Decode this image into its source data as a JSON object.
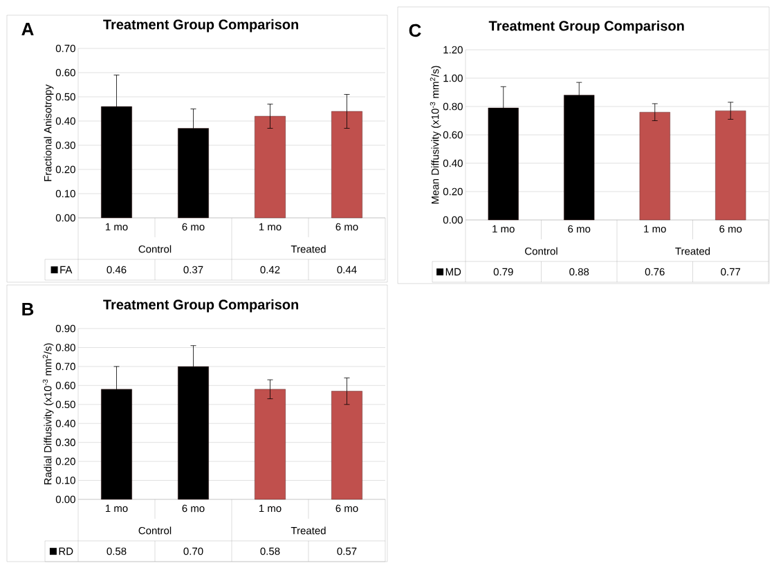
{
  "chart_data": [
    {
      "type": "bar",
      "title": "Treatment Group Comparison",
      "ylabel": "Fractional Anisotropy",
      "annotations": [
        "A",
        "Control",
        "Treated"
      ],
      "categories": [
        "1 mo",
        "6 mo",
        "1 mo",
        "6 mo"
      ],
      "ylim": [
        0,
        0.7
      ],
      "yticks": [
        {
          "value": 0,
          "label": "0.00"
        },
        {
          "value": 0.1,
          "label": "0.10"
        },
        {
          "value": 0.2,
          "label": "0.20"
        },
        {
          "value": 0.3,
          "label": "0.30"
        },
        {
          "value": 0.4,
          "label": "0.40"
        },
        {
          "value": 0.5,
          "label": "0.50"
        },
        {
          "value": 0.6,
          "label": "0.60"
        },
        {
          "value": 0.7,
          "label": "0.70"
        }
      ],
      "grid": "y",
      "legend": "bottom",
      "series": [
        {
          "name": "FA",
          "color": "#000000",
          "colors": [
            "#000000",
            "#000000",
            "#c0504d",
            "#c0504d"
          ],
          "values": [
            0.46,
            0.37,
            0.42,
            0.44
          ],
          "errors": [
            0.13,
            0.08,
            0.05,
            0.07
          ],
          "value_labels": [
            "0.46",
            "0.37",
            "0.42",
            "0.44"
          ]
        }
      ]
    },
    {
      "type": "bar",
      "title": "Treatment Group Comparison",
      "ylabel": "Mean Diffusivity (x10$^{-3}$ mm$^{2}$/s)",
      "annotations": [
        "C",
        "Control",
        "Treated"
      ],
      "categories": [
        "1 mo",
        "6 mo",
        "1 mo",
        "6 mo"
      ],
      "ylim": [
        0,
        1.2
      ],
      "yticks": [
        {
          "value": 0,
          "label": "0.00"
        },
        {
          "value": 0.2,
          "label": "0.20"
        },
        {
          "value": 0.4,
          "label": "0.40"
        },
        {
          "value": 0.6,
          "label": "0.60"
        },
        {
          "value": 0.8,
          "label": "0.80"
        },
        {
          "value": 1.0,
          "label": "1.00"
        },
        {
          "value": 1.2,
          "label": "1.20"
        }
      ],
      "grid": "y",
      "legend": "bottom",
      "series": [
        {
          "name": "MD",
          "color": "#000000",
          "colors": [
            "#000000",
            "#000000",
            "#c0504d",
            "#c0504d"
          ],
          "values": [
            0.79,
            0.88,
            0.76,
            0.77
          ],
          "errors": [
            0.15,
            0.09,
            0.06,
            0.06
          ],
          "value_labels": [
            "0.79",
            "0.88",
            "0.76",
            "0.77"
          ]
        }
      ]
    },
    {
      "type": "bar",
      "title": "Treatment Group Comparison",
      "ylabel": "Radial Diffusivity (x10$^{-3}$ mm$^{2}$/s)",
      "annotations": [
        "B",
        "Control",
        "Treated"
      ],
      "categories": [
        "1 mo",
        "6 mo",
        "1 mo",
        "6 mo"
      ],
      "ylim": [
        0,
        0.9
      ],
      "yticks": [
        {
          "value": 0,
          "label": "0.00"
        },
        {
          "value": 0.1,
          "label": "0.10"
        },
        {
          "value": 0.2,
          "label": "0.20"
        },
        {
          "value": 0.3,
          "label": "0.30"
        },
        {
          "value": 0.4,
          "label": "0.40"
        },
        {
          "value": 0.5,
          "label": "0.50"
        },
        {
          "value": 0.6,
          "label": "0.60"
        },
        {
          "value": 0.7,
          "label": "0.70"
        },
        {
          "value": 0.8,
          "label": "0.80"
        },
        {
          "value": 0.9,
          "label": "0.90"
        }
      ],
      "grid": "y",
      "legend": "bottom",
      "series": [
        {
          "name": "RD",
          "color": "#000000",
          "colors": [
            "#000000",
            "#000000",
            "#c0504d",
            "#c0504d"
          ],
          "values": [
            0.58,
            0.7,
            0.58,
            0.57
          ],
          "errors": [
            0.12,
            0.11,
            0.05,
            0.07
          ],
          "value_labels": [
            "0.58",
            "0.70",
            "0.58",
            "0.57"
          ]
        }
      ]
    }
  ]
}
